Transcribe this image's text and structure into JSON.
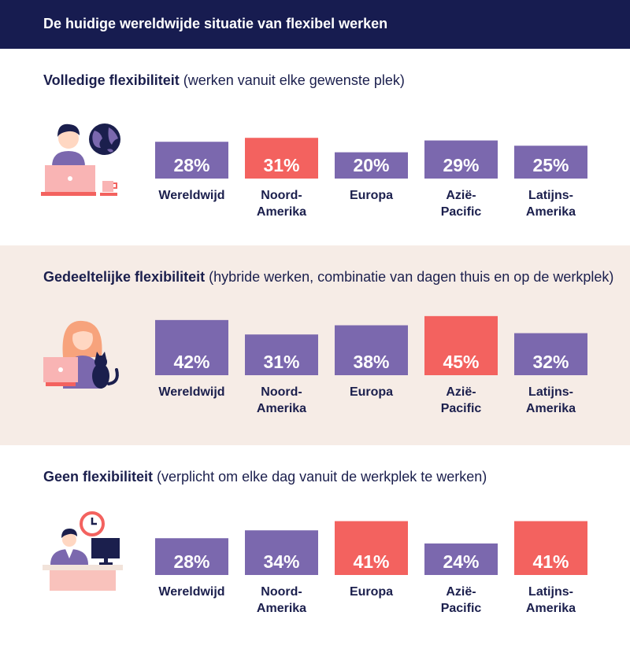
{
  "header": {
    "title": "De huidige wereldwijde situatie van flexibel werken"
  },
  "colors": {
    "normal": "#7b68ae",
    "highlight": "#f3625f",
    "header_bg": "#171c50",
    "text": "#1b1f4d",
    "beige": "#f6ece6"
  },
  "chart_data": [
    {
      "type": "bar",
      "title_bold": "Volledige flexibiliteit",
      "title_rest": " (werken vanuit elke gewenste plek)",
      "categories": [
        [
          "Wereldwijd"
        ],
        [
          "Noord-",
          "Amerika"
        ],
        [
          "Europa"
        ],
        [
          "Azië-",
          "Pacific"
        ],
        [
          "Latijns-",
          "Amerika"
        ]
      ],
      "values": [
        28,
        31,
        20,
        29,
        25
      ],
      "value_labels": [
        "28%",
        "31%",
        "20%",
        "29%",
        "25%"
      ],
      "highlight": [
        false,
        true,
        false,
        false,
        false
      ],
      "icon": "laptop-globe-icon"
    },
    {
      "type": "bar",
      "title_bold": "Gedeeltelijke flexibiliteit",
      "title_rest": " (hybride werken, combinatie van dagen thuis en op de werkplek)",
      "categories": [
        [
          "Wereldwijd"
        ],
        [
          "Noord-",
          "Amerika"
        ],
        [
          "Europa"
        ],
        [
          "Azië-",
          "Pacific"
        ],
        [
          "Latijns-",
          "Amerika"
        ]
      ],
      "values": [
        42,
        31,
        38,
        45,
        32
      ],
      "value_labels": [
        "42%",
        "31%",
        "38%",
        "45%",
        "32%"
      ],
      "highlight": [
        false,
        false,
        false,
        true,
        false
      ],
      "icon": "laptop-cat-icon"
    },
    {
      "type": "bar",
      "title_bold": "Geen flexibiliteit",
      "title_rest": " (verplicht om elke dag vanuit de werkplek te werken)",
      "categories": [
        [
          "Wereldwijd"
        ],
        [
          "Noord-",
          "Amerika"
        ],
        [
          "Europa"
        ],
        [
          "Azië-",
          "Pacific"
        ],
        [
          "Latijns-",
          "Amerika"
        ]
      ],
      "values": [
        28,
        34,
        41,
        24,
        41
      ],
      "value_labels": [
        "28%",
        "34%",
        "41%",
        "24%",
        "41%"
      ],
      "highlight": [
        false,
        false,
        true,
        false,
        true
      ],
      "icon": "desk-clock-icon"
    }
  ]
}
